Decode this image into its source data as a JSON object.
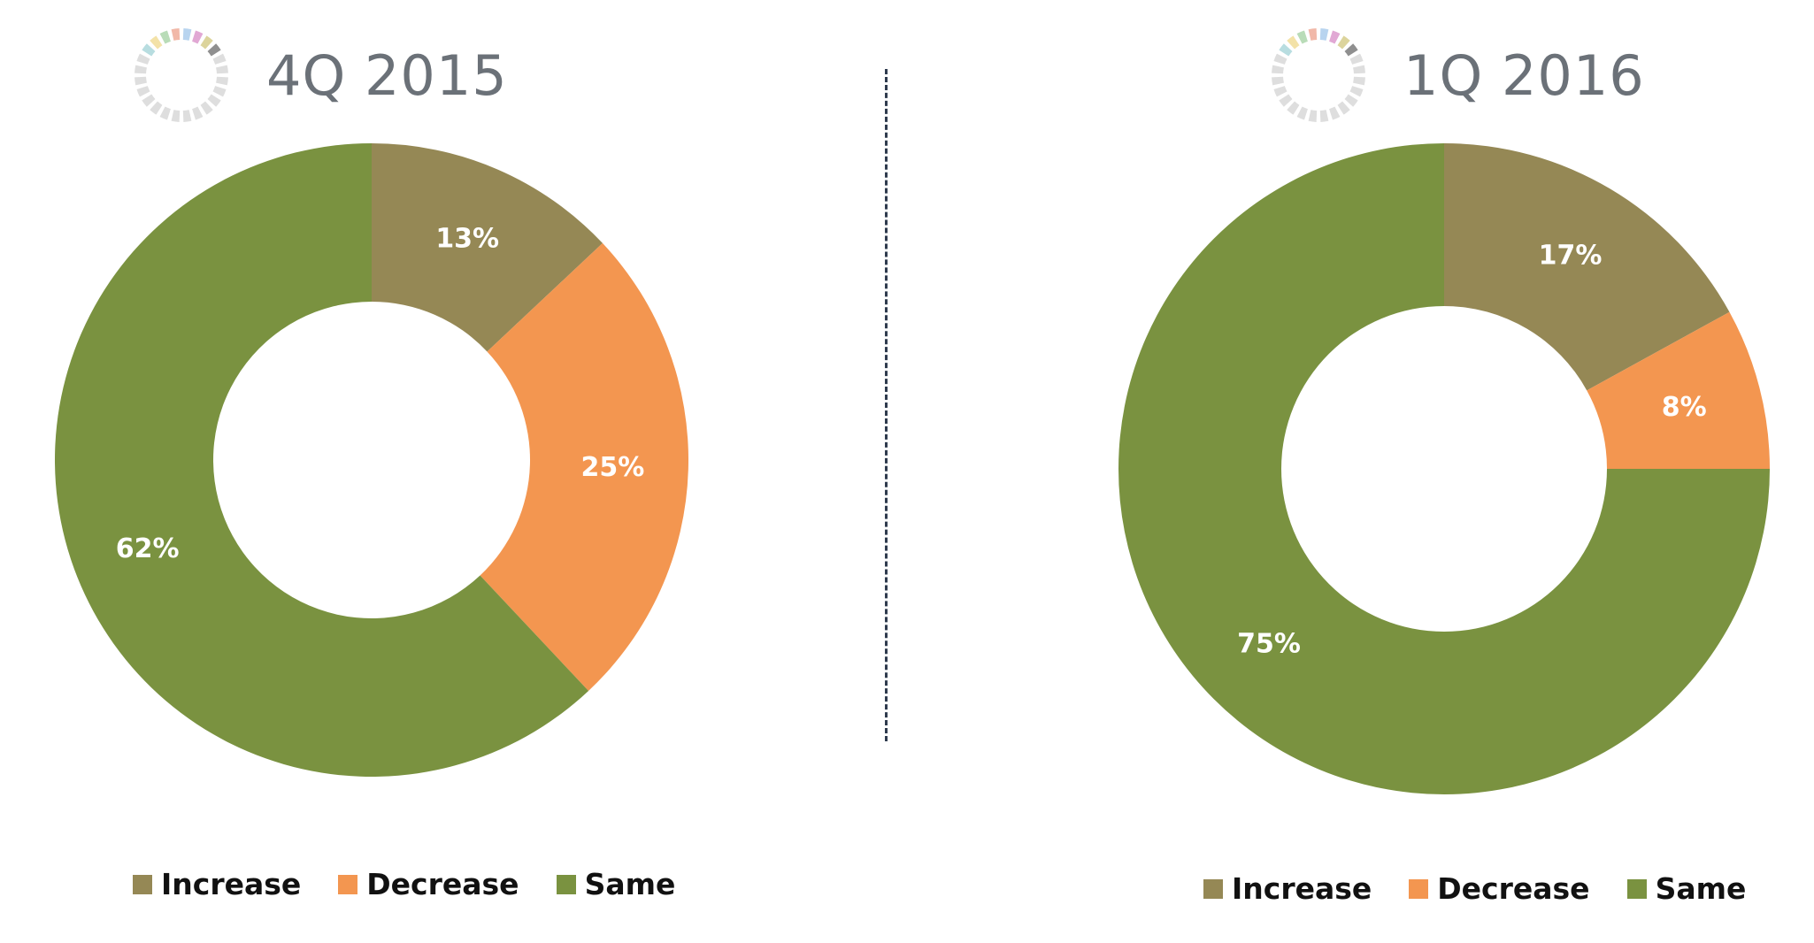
{
  "colors": {
    "increase": "#958855",
    "decrease": "#F39650",
    "same": "#7A9240",
    "title_text": "#6b7178",
    "divider": "#2f3b4e"
  },
  "icons": {
    "title_ring": "segmented-ring-icon"
  },
  "legend": [
    "Increase",
    "Decrease",
    "Same"
  ],
  "chart_data": [
    {
      "type": "pie",
      "donut": true,
      "title": "4Q 2015",
      "categories": [
        "Increase",
        "Decrease",
        "Same"
      ],
      "values": [
        13,
        25,
        62
      ],
      "labels": [
        "13%",
        "25%",
        "62%"
      ],
      "unit": "%",
      "legend_position": "bottom"
    },
    {
      "type": "pie",
      "donut": true,
      "title": "1Q 2016",
      "categories": [
        "Increase",
        "Decrease",
        "Same"
      ],
      "values": [
        17,
        8,
        75
      ],
      "labels": [
        "17%",
        "8%",
        "75%"
      ],
      "unit": "%",
      "legend_position": "bottom"
    }
  ]
}
